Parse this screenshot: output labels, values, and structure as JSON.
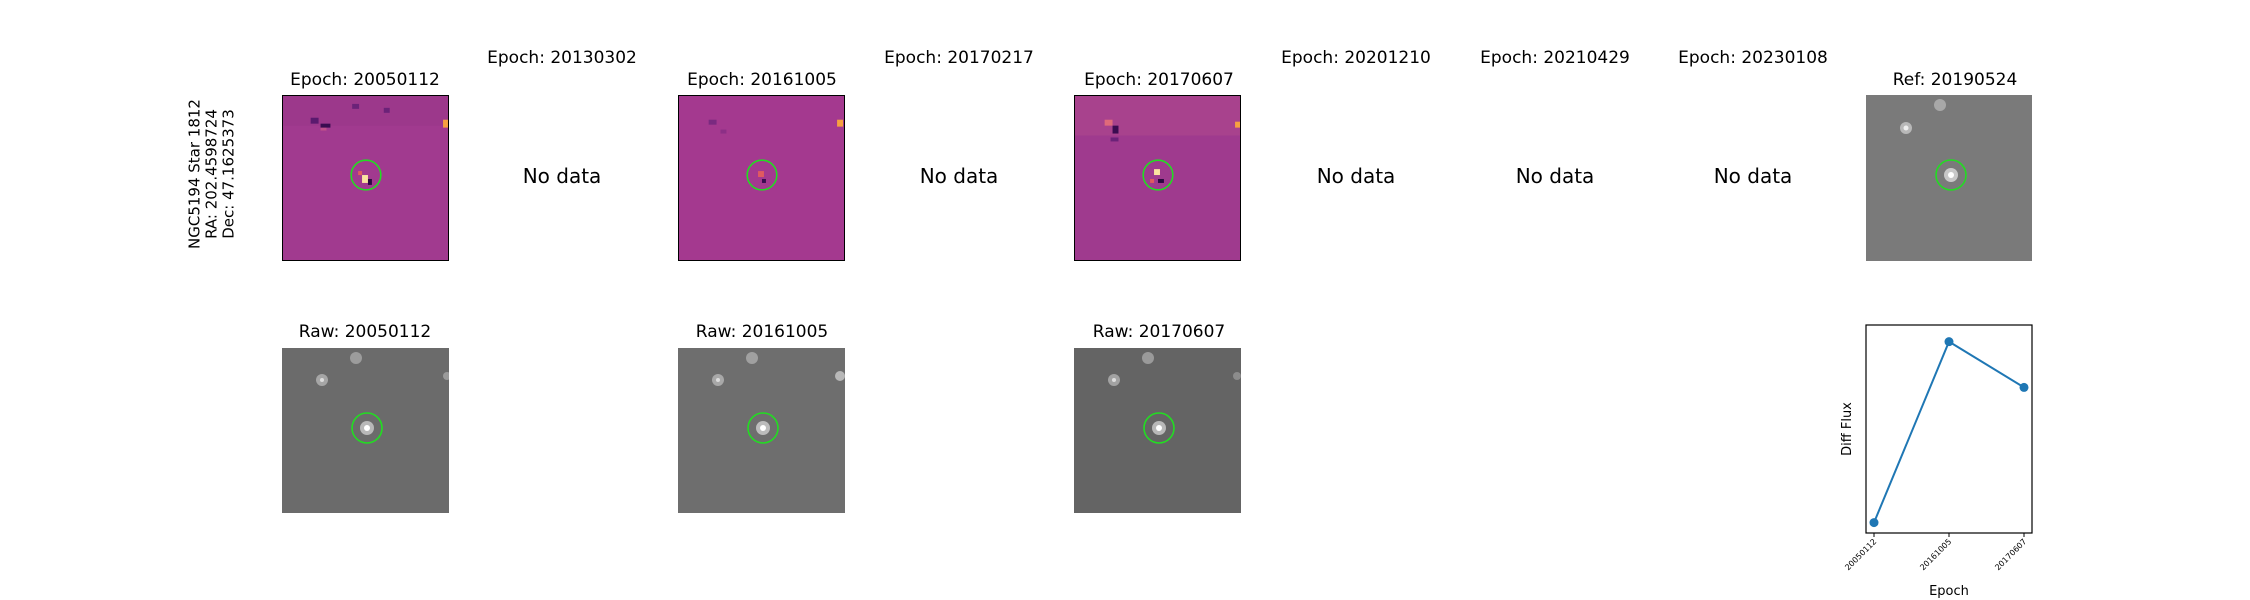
{
  "side_label": {
    "line1": "NGC5194 Star 1812",
    "line2": "RA: 202.4598724",
    "line3": "Dec: 47.1625373"
  },
  "diff_titles": [
    "Epoch: 20050112",
    "Epoch: 20130302",
    "Epoch: 20161005",
    "Epoch: 20170217",
    "Epoch: 20170607",
    "Epoch: 20201210",
    "Epoch: 20210429",
    "Epoch: 20230108"
  ],
  "ref_title": "Ref: 20190524",
  "raw_titles": [
    "Raw: 20050112",
    "Raw: 20161005",
    "Raw: 20170607"
  ],
  "no_data_text": "No data",
  "colors": {
    "diff_background": "#a13a8f",
    "raw_background": "#6b6b6b",
    "ref_background": "#7a7a7a",
    "target_circle": "#22dd22",
    "line": "#1f77b4"
  },
  "chart_data": {
    "type": "line",
    "x": [
      "20050112",
      "20161005",
      "20170607"
    ],
    "values": [
      0.05,
      0.92,
      0.7
    ],
    "xlabel": "Epoch",
    "ylabel": "Diff Flux",
    "yticks_shown": false
  }
}
